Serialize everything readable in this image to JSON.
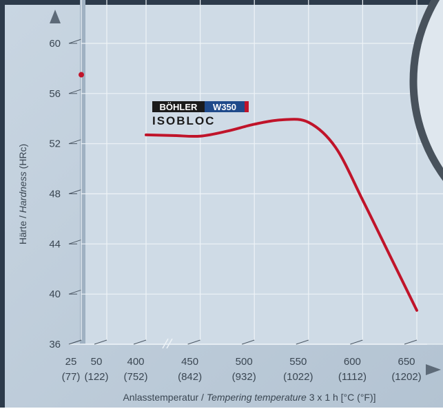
{
  "chart_data": {
    "type": "line",
    "brand": {
      "maker": "BÖHLER",
      "grade": "W350",
      "product": "ISOBLOC"
    },
    "y_label": [
      "Härte /",
      "Hardness",
      "(HRc)"
    ],
    "x_label": [
      "Anlasstemperatur /",
      "Tempering temperature",
      "3 x 1 h [°C (°F)]"
    ],
    "xticks": [
      {
        "value": 25,
        "label": "25",
        "sublabel": "(77)"
      },
      {
        "value": 50,
        "label": "50",
        "sublabel": "(122)"
      },
      {
        "value": 400,
        "label": "400",
        "sublabel": "(752)"
      },
      {
        "value": 450,
        "label": "450",
        "sublabel": "(842)"
      },
      {
        "value": 500,
        "label": "500",
        "sublabel": "(932)"
      },
      {
        "value": 550,
        "label": "550",
        "sublabel": "(1022)"
      },
      {
        "value": 600,
        "label": "600",
        "sublabel": "(1112)"
      },
      {
        "value": 650,
        "label": "650",
        "sublabel": "(1202)"
      }
    ],
    "ylim": [
      36,
      60
    ],
    "yticks": [
      36,
      40,
      44,
      48,
      52,
      56,
      60
    ],
    "grid": true,
    "point": {
      "x": 25,
      "y": 57.5,
      "color": "#c0142a"
    },
    "series": [
      {
        "color": "#c0142a",
        "x": [
          400,
          425,
          450,
          475,
          500,
          525,
          550,
          575,
          600,
          625,
          650
        ],
        "values": [
          52.7,
          52.65,
          52.6,
          53.0,
          53.55,
          53.9,
          53.7,
          51.7,
          47.5,
          43.1,
          38.7
        ]
      }
    ]
  }
}
